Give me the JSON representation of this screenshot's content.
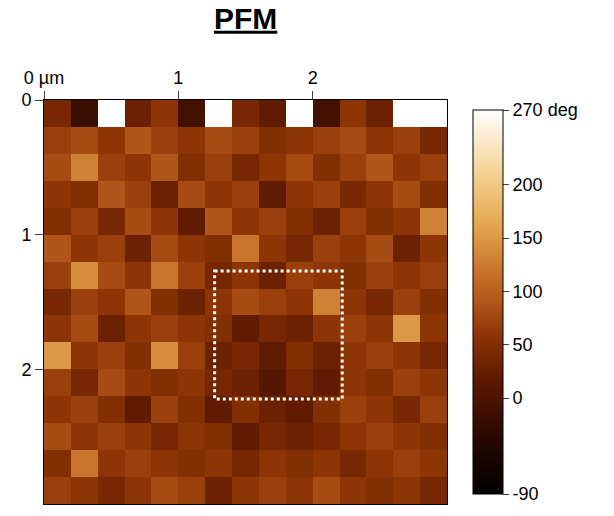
{
  "chart_data": {
    "type": "heatmap",
    "title": "PFM",
    "x": [
      0.1,
      0.3,
      0.5,
      0.7,
      0.9,
      1.1,
      1.3,
      1.5,
      1.7,
      1.9,
      2.1,
      2.3,
      2.5,
      2.7,
      2.9
    ],
    "y": [
      0.1,
      0.3,
      0.5,
      0.7,
      0.9,
      1.1,
      1.3,
      1.5,
      1.7,
      1.9,
      2.1,
      2.3,
      2.5,
      2.7,
      2.9
    ],
    "z": [
      [
        40,
        -20,
        270,
        30,
        60,
        -10,
        270,
        40,
        20,
        270,
        -10,
        60,
        30,
        270,
        270
      ],
      [
        70,
        80,
        60,
        90,
        70,
        60,
        80,
        70,
        50,
        60,
        70,
        80,
        60,
        70,
        40
      ],
      [
        80,
        130,
        70,
        60,
        90,
        50,
        70,
        40,
        60,
        80,
        50,
        70,
        90,
        60,
        70
      ],
      [
        60,
        50,
        90,
        70,
        30,
        80,
        60,
        70,
        20,
        60,
        70,
        40,
        60,
        80,
        50
      ],
      [
        50,
        70,
        40,
        80,
        60,
        20,
        90,
        60,
        70,
        50,
        30,
        70,
        50,
        60,
        130
      ],
      [
        90,
        60,
        70,
        30,
        80,
        60,
        50,
        120,
        60,
        40,
        70,
        60,
        80,
        30,
        60
      ],
      [
        70,
        140,
        80,
        60,
        120,
        70,
        40,
        60,
        30,
        70,
        60,
        50,
        70,
        60,
        70
      ],
      [
        40,
        70,
        60,
        90,
        50,
        30,
        60,
        80,
        70,
        60,
        130,
        60,
        40,
        70,
        50
      ],
      [
        60,
        80,
        30,
        60,
        70,
        60,
        50,
        20,
        40,
        30,
        60,
        70,
        60,
        150,
        60
      ],
      [
        150,
        60,
        70,
        50,
        140,
        70,
        30,
        40,
        20,
        50,
        30,
        60,
        70,
        60,
        40
      ],
      [
        70,
        40,
        80,
        60,
        50,
        60,
        40,
        30,
        10,
        40,
        20,
        60,
        50,
        70,
        60
      ],
      [
        60,
        70,
        50,
        20,
        70,
        50,
        20,
        50,
        30,
        20,
        50,
        70,
        60,
        40,
        70
      ],
      [
        80,
        60,
        70,
        60,
        40,
        60,
        50,
        20,
        40,
        30,
        40,
        60,
        70,
        60,
        50
      ],
      [
        50,
        120,
        60,
        70,
        60,
        50,
        60,
        40,
        60,
        50,
        60,
        40,
        60,
        70,
        60
      ],
      [
        70,
        60,
        40,
        60,
        80,
        70,
        30,
        60,
        70,
        60,
        80,
        60,
        50,
        60,
        40
      ]
    ],
    "xlim": [
      0,
      3
    ],
    "ylim": [
      3,
      0
    ],
    "xticks": [
      {
        "value": 0,
        "label": "0 µm"
      },
      1,
      2
    ],
    "yticks": [
      0,
      1,
      2
    ],
    "colorbar": {
      "range": [
        -90,
        270
      ],
      "ticks": [
        {
          "value": 270,
          "label": "270 deg"
        },
        200,
        150,
        100,
        50,
        0,
        -90
      ]
    },
    "highlight_box": {
      "x": [
        1.27,
        2.22
      ],
      "y": [
        1.27,
        2.22
      ]
    }
  }
}
